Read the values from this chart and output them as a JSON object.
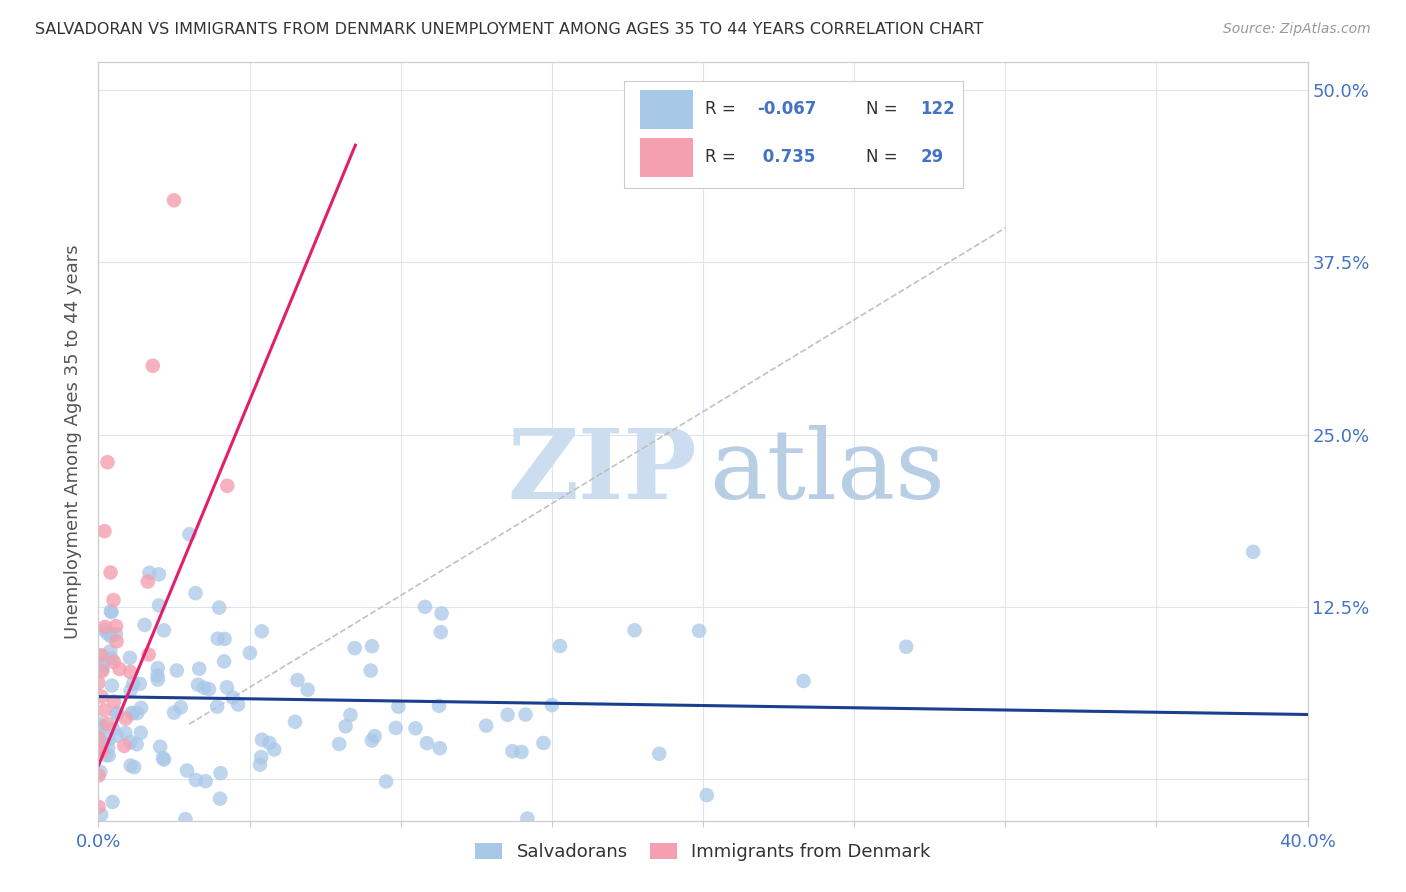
{
  "title": "SALVADORAN VS IMMIGRANTS FROM DENMARK UNEMPLOYMENT AMONG AGES 35 TO 44 YEARS CORRELATION CHART",
  "source": "Source: ZipAtlas.com",
  "ylabel": "Unemployment Among Ages 35 to 44 years",
  "xlim": [
    0.0,
    0.4
  ],
  "ylim": [
    -0.03,
    0.52
  ],
  "xtick_positions": [
    0.0,
    0.05,
    0.1,
    0.15,
    0.2,
    0.25,
    0.3,
    0.35,
    0.4
  ],
  "xtick_labels": [
    "0.0%",
    "",
    "",
    "",
    "",
    "",
    "",
    "",
    "40.0%"
  ],
  "ytick_positions": [
    0.0,
    0.125,
    0.25,
    0.375,
    0.5
  ],
  "ytick_labels_right": [
    "",
    "12.5%",
    "25.0%",
    "37.5%",
    "50.0%"
  ],
  "legend_blue_R": "-0.067",
  "legend_blue_N": "122",
  "legend_pink_R": "0.735",
  "legend_pink_N": "29",
  "blue_color": "#a8c8e8",
  "pink_color": "#f4a0b0",
  "blue_line_color": "#1a3f8f",
  "pink_line_color": "#e0206a",
  "dashed_line_color": "#bbbbbb",
  "tick_color": "#4472c4",
  "label_color": "#555555",
  "grid_color": "#dde4f0",
  "blue_trend_x": [
    0.0,
    0.4
  ],
  "blue_trend_y": [
    0.06,
    0.047
  ],
  "pink_trend_x": [
    0.0,
    0.085
  ],
  "pink_trend_y": [
    0.01,
    0.46
  ],
  "dashed_trend_x": [
    0.03,
    0.3
  ],
  "dashed_trend_y": [
    0.04,
    0.4
  ]
}
